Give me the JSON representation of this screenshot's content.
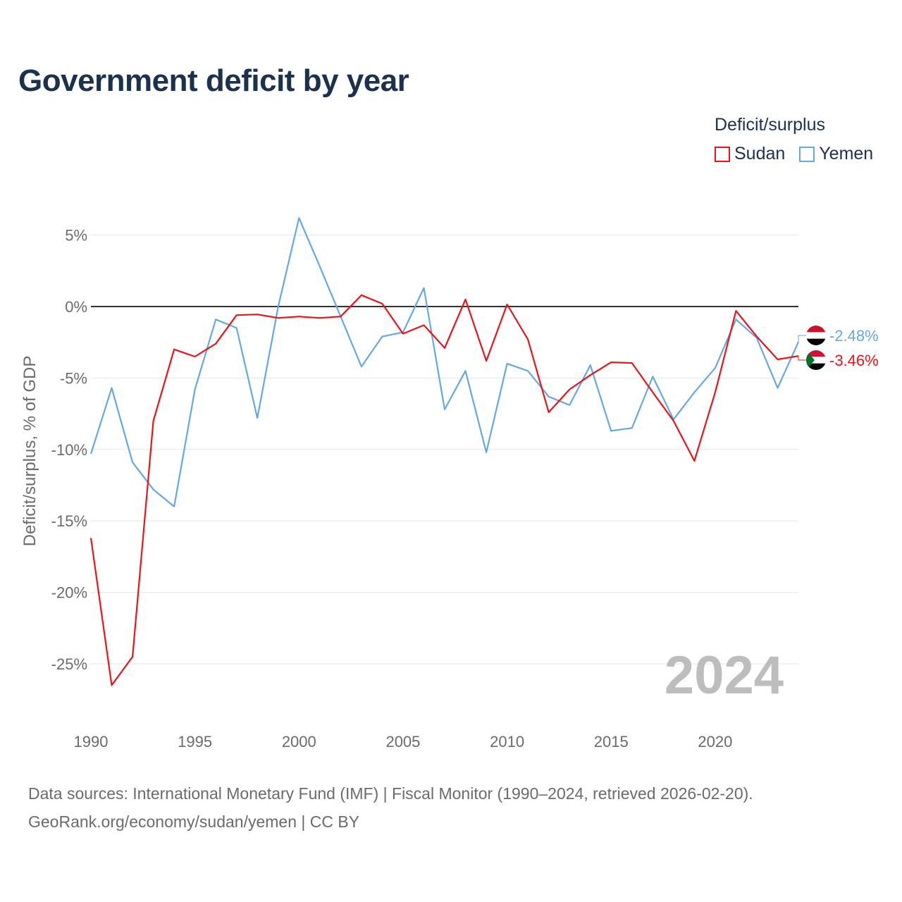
{
  "title": "Government deficit by year",
  "legend": {
    "title": "Deficit/surplus",
    "items": [
      {
        "name": "Sudan",
        "color": "#e8141b"
      },
      {
        "name": "Yemen",
        "color": "#66a8e0"
      }
    ]
  },
  "footer": {
    "line1": "Data sources: International Monetary Fund (IMF) | Fiscal Monitor (1990–2024, retrieved 2026-02-20).",
    "line2": "GeoRank.org/economy/sudan/yemen | CC BY"
  },
  "chart_data": {
    "type": "line",
    "title": "Government deficit by year",
    "xlabel": "",
    "ylabel": "Deficit/surplus, % of GDP",
    "xlim": [
      1990,
      2024
    ],
    "ylim": [
      -28,
      7
    ],
    "y_ticks": [
      5,
      0,
      -5,
      -10,
      -15,
      -20,
      -25
    ],
    "y_tick_labels": [
      "5%",
      "0%",
      "-5%",
      "-10%",
      "-15%",
      "-20%",
      "-25%"
    ],
    "x_ticks": [
      1990,
      1995,
      2000,
      2005,
      2010,
      2015,
      2020
    ],
    "x_tick_labels": [
      "1990",
      "1995",
      "2000",
      "2005",
      "2010",
      "2015",
      "2020"
    ],
    "year_watermark": "2024",
    "x": [
      1990,
      1991,
      1992,
      1993,
      1994,
      1995,
      1996,
      1997,
      1998,
      1999,
      2000,
      2001,
      2002,
      2003,
      2004,
      2005,
      2006,
      2007,
      2008,
      2009,
      2010,
      2011,
      2012,
      2013,
      2014,
      2015,
      2016,
      2017,
      2018,
      2019,
      2020,
      2021,
      2022,
      2023,
      2024
    ],
    "series": [
      {
        "name": "Sudan",
        "color": "#e8141b",
        "end_label": "-3.46%",
        "values": [
          -16.2,
          -26.5,
          -24.5,
          -8.0,
          -3.0,
          -3.5,
          -2.6,
          -0.6,
          -0.55,
          -0.8,
          -0.7,
          -0.8,
          -0.7,
          0.8,
          0.2,
          -1.9,
          -1.3,
          -2.9,
          0.5,
          -3.8,
          0.15,
          -2.3,
          -7.4,
          -5.8,
          -4.8,
          -3.9,
          -3.95,
          -6.0,
          -8.0,
          -10.8,
          -6.0,
          -0.3,
          -2.1,
          -3.7,
          -3.46
        ]
      },
      {
        "name": "Yemen",
        "color": "#66a8e0",
        "end_label": "-2.48%",
        "values": [
          -10.3,
          -5.7,
          -10.9,
          -12.8,
          -14.0,
          -5.8,
          -0.9,
          -1.5,
          -7.8,
          0.0,
          6.2,
          2.8,
          -0.7,
          -4.2,
          -2.1,
          -1.8,
          1.3,
          -7.2,
          -4.5,
          -10.2,
          -4.0,
          -4.5,
          -6.3,
          -6.9,
          -4.1,
          -8.7,
          -8.5,
          -4.9,
          -7.9,
          -6.0,
          -4.3,
          -0.9,
          -2.2,
          -5.7,
          -2.48
        ]
      }
    ]
  }
}
